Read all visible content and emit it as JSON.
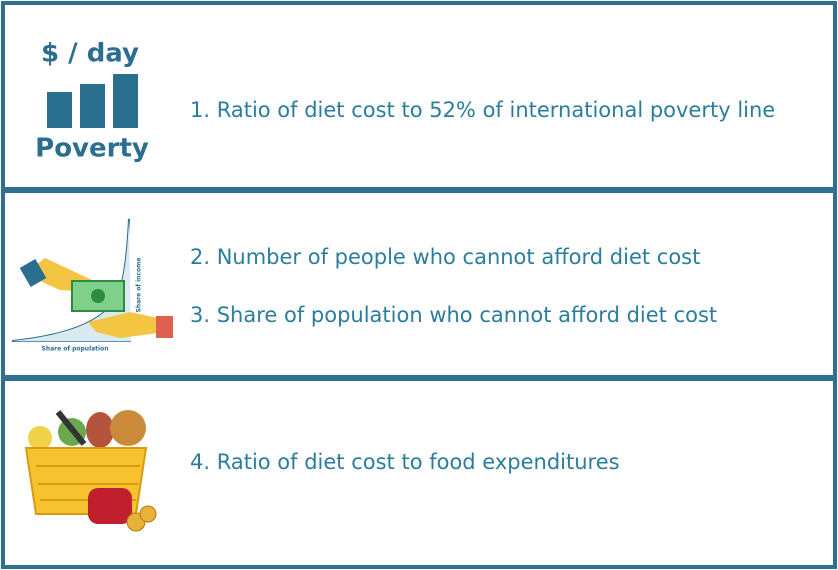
{
  "panels": [
    {
      "icon": {
        "title": "$ / day",
        "caption": "Poverty"
      },
      "items": [
        "1. Ratio of diet cost to 52% of international poverty line"
      ]
    },
    {
      "icon": {
        "y_label": "Share of income",
        "x_label": "Share of population"
      },
      "items": [
        "2. Number of people who cannot afford diet cost",
        "3. Share of population who cannot afford diet cost"
      ]
    },
    {
      "items": [
        "4. Ratio of diet cost to food expenditures"
      ]
    }
  ]
}
